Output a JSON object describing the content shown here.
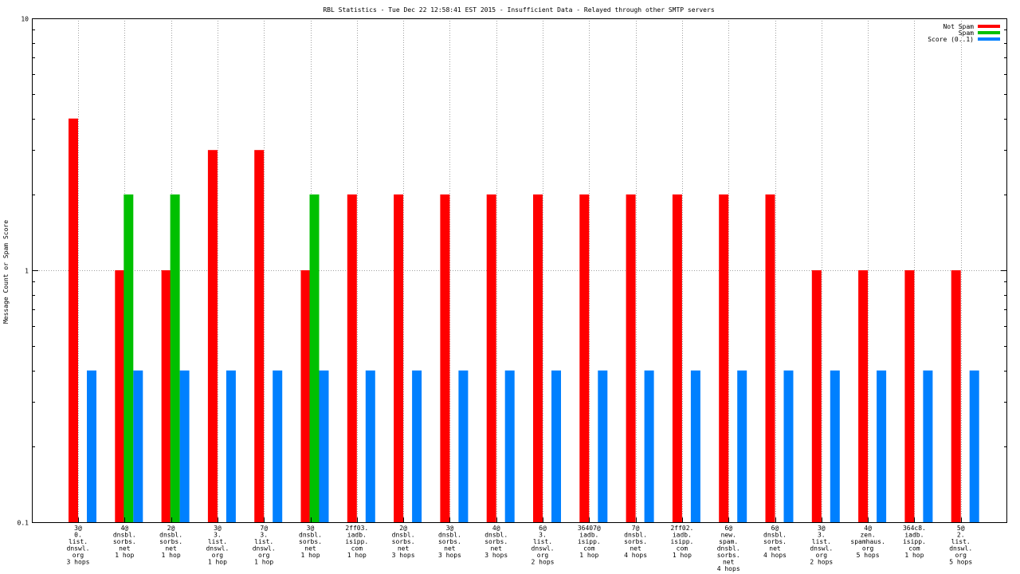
{
  "chart_data": {
    "type": "bar",
    "title": "RBL Statistics - Tue Dec 22 12:58:41 EST 2015 - Insufficient Data - Relayed through other SMTP servers",
    "ylabel": "Message Count or Spam Score",
    "xlabel": "",
    "yscale": "log",
    "ylim": [
      0.1,
      10
    ],
    "yticks": [
      "0.1",
      "1",
      "10"
    ],
    "grid": true,
    "legend_position": "top-right",
    "categories": [
      [
        "3@",
        "0.",
        "list.",
        "dnswl.",
        "org",
        "3 hops"
      ],
      [
        "4@",
        "dnsbl.",
        "sorbs.",
        "net",
        "1 hop"
      ],
      [
        "2@",
        "dnsbl.",
        "sorbs.",
        "net",
        "1 hop"
      ],
      [
        "3@",
        "3.",
        "list.",
        "dnswl.",
        "org",
        "1 hop"
      ],
      [
        "7@",
        "3.",
        "list.",
        "dnswl.",
        "org",
        "1 hop"
      ],
      [
        "3@",
        "dnsbl.",
        "sorbs.",
        "net",
        "1 hop"
      ],
      [
        "2ff03.",
        "iadb.",
        "isipp.",
        "com",
        "1 hop"
      ],
      [
        "2@",
        "dnsbl.",
        "sorbs.",
        "net",
        "3 hops"
      ],
      [
        "3@",
        "dnsbl.",
        "sorbs.",
        "net",
        "3 hops"
      ],
      [
        "4@",
        "dnsbl.",
        "sorbs.",
        "net",
        "3 hops"
      ],
      [
        "6@",
        "3.",
        "list.",
        "dnswl.",
        "org",
        "2 hops"
      ],
      [
        "36407@",
        "iadb.",
        "isipp.",
        "com",
        "1 hop"
      ],
      [
        "7@",
        "dnsbl.",
        "sorbs.",
        "net",
        "4 hops"
      ],
      [
        "2ff02.",
        "iadb.",
        "isipp.",
        "com",
        "1 hop"
      ],
      [
        "6@",
        "new.",
        "spam.",
        "dnsbl.",
        "sorbs.",
        "net",
        "4 hops"
      ],
      [
        "6@",
        "dnsbl.",
        "sorbs.",
        "net",
        "4 hops"
      ],
      [
        "3@",
        "3.",
        "list.",
        "dnswl.",
        "org",
        "2 hops"
      ],
      [
        "4@",
        "zen.",
        "spamhaus.",
        "org",
        "5 hops"
      ],
      [
        "364c8.",
        "iadb.",
        "isipp.",
        "com",
        "1 hop"
      ],
      [
        "5@",
        "2.",
        "list.",
        "dnswl.",
        "org",
        "5 hops"
      ]
    ],
    "series": [
      {
        "name": "Not Spam",
        "color": "#ff0000",
        "values": [
          4,
          1,
          1,
          3,
          3,
          1,
          2,
          2,
          2,
          2,
          2,
          2,
          2,
          2,
          2,
          2,
          1,
          1,
          1,
          1
        ]
      },
      {
        "name": "Spam",
        "color": "#00c000",
        "values": [
          null,
          2,
          2,
          null,
          null,
          2,
          null,
          null,
          null,
          null,
          null,
          null,
          null,
          null,
          null,
          null,
          null,
          null,
          null,
          null
        ]
      },
      {
        "name": "Score (0..1)",
        "color": "#0080ff",
        "values": [
          0.4,
          0.4,
          0.4,
          0.4,
          0.4,
          0.4,
          0.4,
          0.4,
          0.4,
          0.4,
          0.4,
          0.4,
          0.4,
          0.4,
          0.4,
          0.4,
          0.4,
          0.4,
          0.4,
          0.4
        ]
      }
    ]
  }
}
